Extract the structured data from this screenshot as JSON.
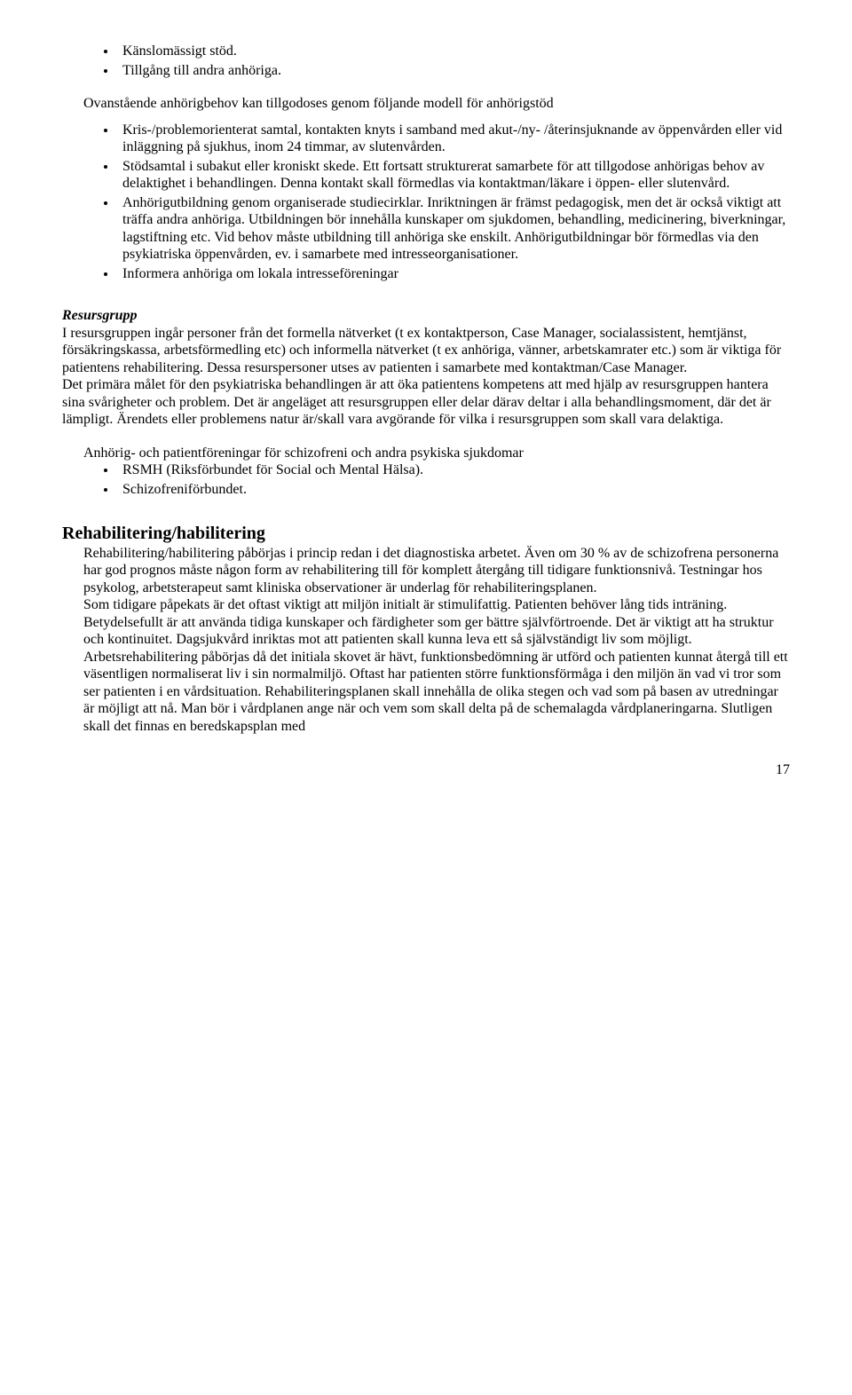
{
  "list1": [
    "Känslomässigt stöd.",
    "Tillgång till andra anhöriga."
  ],
  "intro_para": "Ovanstående anhörigbehov kan tillgodoses genom följande modell för anhörigstöd",
  "list2": [
    "Kris-/problemorienterat samtal, kontakten knyts i samband med akut-/ny- /återinsjuknande av öppenvården eller vid inläggning på sjukhus, inom 24 timmar, av slutenvården.",
    "Stödsamtal i subakut eller kroniskt skede. Ett fortsatt strukturerat samarbete för att tillgodose anhörigas behov av delaktighet i behandlingen. Denna kontakt skall förmedlas via kontaktman/läkare i öppen- eller slutenvård.",
    "Anhörigutbildning genom organiserade studiecirklar. Inriktningen är främst pedagogisk, men det är också viktigt att träffa andra anhöriga. Utbildningen bör innehålla kunskaper om sjukdomen, behandling, medicinering, biverkningar, lagstiftning etc. Vid behov måste utbildning till anhöriga ske enskilt. Anhörigutbildningar bör förmedlas via den psykiatriska öppenvården, ev. i samarbete med intresseorganisationer.",
    "Informera anhöriga om lokala intresseföreningar"
  ],
  "resursgrupp_title": "Resursgrupp",
  "resursgrupp_body": "I resursgruppen ingår personer från det formella nätverket (t ex kontaktperson, Case Manager, socialassistent, hemtjänst, försäkringskassa, arbetsförmedling etc) och informella nätverket (t ex anhöriga, vänner, arbetskamrater etc.) som är viktiga för patientens rehabilitering. Dessa resurspersoner utses av patienten i samarbete med kontaktman/Case Manager.\nDet primära målet för den psykiatriska behandlingen är att öka patientens kompetens att med hjälp av resursgruppen hantera sina svårigheter och problem. Det är angeläget att resursgruppen eller delar därav deltar i alla behandlingsmoment, där det är lämpligt. Ärendets eller problemens natur är/skall vara avgörande för vilka i resursgruppen som skall vara delaktiga.",
  "foreningar_intro": "Anhörig- och patientföreningar för schizofreni och andra psykiska sjukdomar",
  "list3": [
    "RSMH (Riksförbundet för Social och Mental Hälsa).",
    "Schizofreniförbundet."
  ],
  "rehab_title": "Rehabilitering/habilitering",
  "rehab_body": "Rehabilitering/habilitering påbörjas i princip redan i det diagnostiska arbetet. Även om 30 % av de schizofrena personerna har god prognos måste någon form av rehabilitering till för komplett återgång till tidigare funktionsnivå. Testningar hos psykolog, arbetsterapeut samt kliniska observationer är underlag för rehabiliteringsplanen.\nSom tidigare påpekats är det oftast viktigt att miljön initialt är stimulifattig. Patienten behöver lång tids inträning. Betydelsefullt är att använda tidiga kunskaper och färdigheter som ger bättre självförtroende. Det är viktigt att ha struktur och kontinuitet. Dagsjukvård inriktas mot att patienten skall kunna leva ett så självständigt liv som möjligt.\nArbetsrehabilitering påbörjas då det initiala skovet är hävt, funktionsbedömning är utförd och patienten kunnat återgå till ett väsentligen normaliserat liv i sin normalmiljö. Oftast har patienten större funktionsförmåga i den miljön än vad vi tror som ser patienten i en vårdsituation. Rehabiliteringsplanen skall innehålla de olika stegen och vad som på basen av utredningar är möjligt att nå. Man bör i vårdplanen ange när och vem som skall delta på de schemalagda vårdplaneringarna. Slutligen skall det finnas en beredskapsplan med",
  "page_number": "17"
}
